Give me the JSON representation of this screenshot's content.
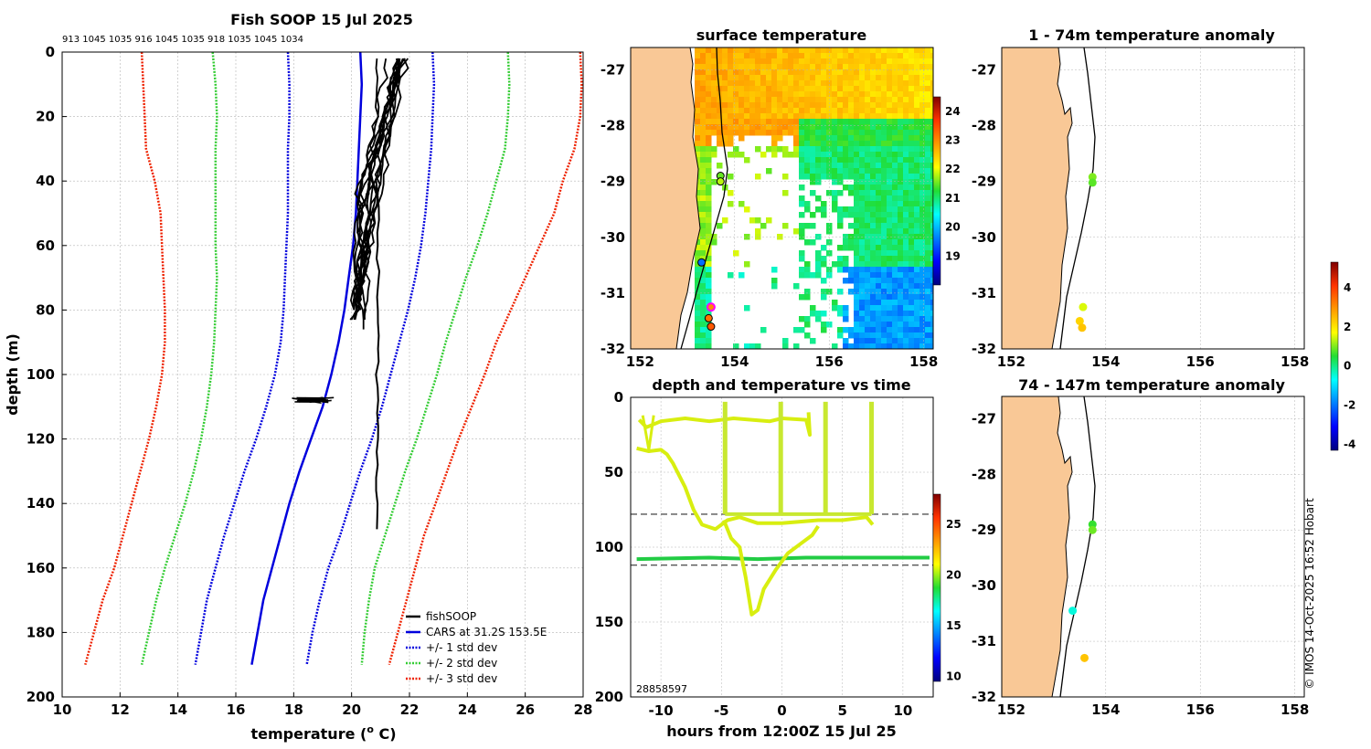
{
  "colors": {
    "land": "#f9c896",
    "profile": "#000000",
    "cars": "#0000dd",
    "std1": "#0000dd",
    "std2": "#33cc33",
    "std3": "#ee2200",
    "grid": "#b4b4b4",
    "trace": "#d8ee10",
    "trace_deep": "#22cc44"
  },
  "chart_data": [
    {
      "id": "profile",
      "type": "line",
      "title": "Fish SOOP 15 Jul 2025",
      "top_labels": "913 1045 1035 916 1045 1035 918 1035 1045 1034",
      "xlabel": "temperature (",
      "xlabel_super": "o",
      "xlabel_end": " C)",
      "ylabel": "depth (m)",
      "xlim": [
        10,
        28
      ],
      "ylim": [
        200,
        0
      ],
      "xticks": [
        10,
        12,
        14,
        16,
        18,
        20,
        22,
        24,
        26,
        28
      ],
      "yticks": [
        0,
        20,
        40,
        60,
        80,
        100,
        120,
        140,
        160,
        180,
        200
      ],
      "legend": [
        "fishSOOP",
        "CARS at 31.2S 153.5E",
        "+/- 1 std dev",
        "+/- 2 std dev",
        "+/- 3 std dev"
      ],
      "depths": [
        0,
        10,
        20,
        30,
        40,
        50,
        60,
        70,
        80,
        90,
        100,
        110,
        120,
        130,
        140,
        150,
        160,
        170,
        180,
        190
      ],
      "cars": [
        20.3,
        20.35,
        20.3,
        20.25,
        20.2,
        20.15,
        20.05,
        19.9,
        19.75,
        19.55,
        19.3,
        19.0,
        18.6,
        18.2,
        17.85,
        17.55,
        17.25,
        16.95,
        16.75,
        16.55
      ],
      "std_minus1": [
        17.8,
        17.85,
        17.85,
        17.8,
        17.8,
        17.8,
        17.75,
        17.7,
        17.65,
        17.55,
        17.35,
        17.05,
        16.7,
        16.3,
        15.95,
        15.6,
        15.3,
        15.0,
        14.8,
        14.6
      ],
      "std_plus1": [
        22.8,
        22.85,
        22.8,
        22.75,
        22.65,
        22.55,
        22.4,
        22.2,
        21.95,
        21.65,
        21.35,
        21.05,
        20.7,
        20.3,
        19.95,
        19.6,
        19.2,
        18.9,
        18.65,
        18.45
      ],
      "std_minus2": [
        15.2,
        15.3,
        15.35,
        15.3,
        15.3,
        15.3,
        15.3,
        15.35,
        15.3,
        15.25,
        15.15,
        15.0,
        14.8,
        14.55,
        14.25,
        13.9,
        13.55,
        13.25,
        13.0,
        12.75
      ],
      "std_plus2": [
        25.4,
        25.45,
        25.4,
        25.3,
        25.0,
        24.7,
        24.35,
        23.95,
        23.6,
        23.25,
        22.95,
        22.6,
        22.25,
        21.85,
        21.5,
        21.15,
        20.8,
        20.6,
        20.45,
        20.35
      ],
      "std_minus3": [
        12.75,
        12.8,
        12.85,
        12.9,
        13.2,
        13.4,
        13.45,
        13.5,
        13.55,
        13.55,
        13.45,
        13.25,
        13.0,
        12.7,
        12.4,
        12.1,
        11.8,
        11.4,
        11.1,
        10.8
      ],
      "std_plus3": [
        27.9,
        27.95,
        27.9,
        27.7,
        27.3,
        27.0,
        26.5,
        26.0,
        25.5,
        25.0,
        24.6,
        24.15,
        23.7,
        23.3,
        22.9,
        22.5,
        22.2,
        21.9,
        21.6,
        21.3
      ]
    },
    {
      "id": "sst",
      "type": "heatmap",
      "title": "surface temperature",
      "xlim": [
        151.8,
        158.2
      ],
      "ylim": [
        -32,
        -26.6
      ],
      "xticks": [
        152,
        154,
        156,
        158
      ],
      "yticks": [
        -27,
        -28,
        -29,
        -30,
        -31,
        -32
      ],
      "colorbar_ticks": [
        19,
        20,
        21,
        22,
        23,
        24
      ],
      "colorbar_range": [
        18,
        24.5
      ],
      "obs_points": [
        [
          153.7,
          -28.9,
          21.5
        ],
        [
          153.7,
          -29.0,
          21.8
        ],
        [
          153.3,
          -30.45,
          19.5
        ],
        [
          153.5,
          -31.25,
          23.0
        ],
        [
          153.45,
          -31.45,
          23.2
        ],
        [
          153.5,
          -31.6,
          23.4
        ]
      ]
    },
    {
      "id": "depthtime",
      "type": "scatter",
      "title": "depth and temperature vs time",
      "xlabel": "hours from 12:00Z 15 Jul 25",
      "xlim": [
        -12.5,
        12.5
      ],
      "ylim": [
        200,
        0
      ],
      "xticks": [
        -10,
        -5,
        0,
        5,
        10
      ],
      "yticks": [
        0,
        50,
        100,
        150,
        200
      ],
      "colorbar_ticks": [
        10,
        15,
        20,
        25
      ],
      "colorbar_range": [
        9.5,
        28
      ],
      "ref_depths": [
        78,
        112
      ],
      "corner_text": "28858597"
    },
    {
      "id": "anom1",
      "type": "scatter",
      "title": "1 - 74m temperature anomaly",
      "xlim": [
        151.8,
        158.2
      ],
      "ylim": [
        -32,
        -26.6
      ],
      "xticks": [
        152,
        154,
        156,
        158
      ],
      "yticks": [
        -27,
        -28,
        -29,
        -30,
        -31,
        -32
      ],
      "points": [
        [
          153.72,
          -28.92,
          1.0
        ],
        [
          153.72,
          -29.02,
          0.8
        ],
        [
          153.52,
          -31.25,
          1.5
        ],
        [
          153.45,
          -31.5,
          2.2
        ],
        [
          153.5,
          -31.62,
          2.4
        ]
      ]
    },
    {
      "id": "anom2",
      "type": "scatter",
      "title": "74 - 147m temperature anomaly",
      "xlim": [
        151.8,
        158.2
      ],
      "ylim": [
        -32,
        -26.6
      ],
      "xticks": [
        152,
        154,
        156,
        158
      ],
      "yticks": [
        -27,
        -28,
        -29,
        -30,
        -31,
        -32
      ],
      "points": [
        [
          153.72,
          -28.9,
          0.6
        ],
        [
          153.72,
          -29.0,
          0.9
        ],
        [
          153.3,
          -30.45,
          -0.5
        ],
        [
          153.55,
          -31.3,
          2.4
        ]
      ],
      "colorbar_ticks": [
        -4,
        -2,
        0,
        2,
        4
      ],
      "colorbar_range": [
        -4.3,
        5.3
      ]
    }
  ],
  "footer": "© IMOS 14-Oct-2025 16:52 Hobart"
}
